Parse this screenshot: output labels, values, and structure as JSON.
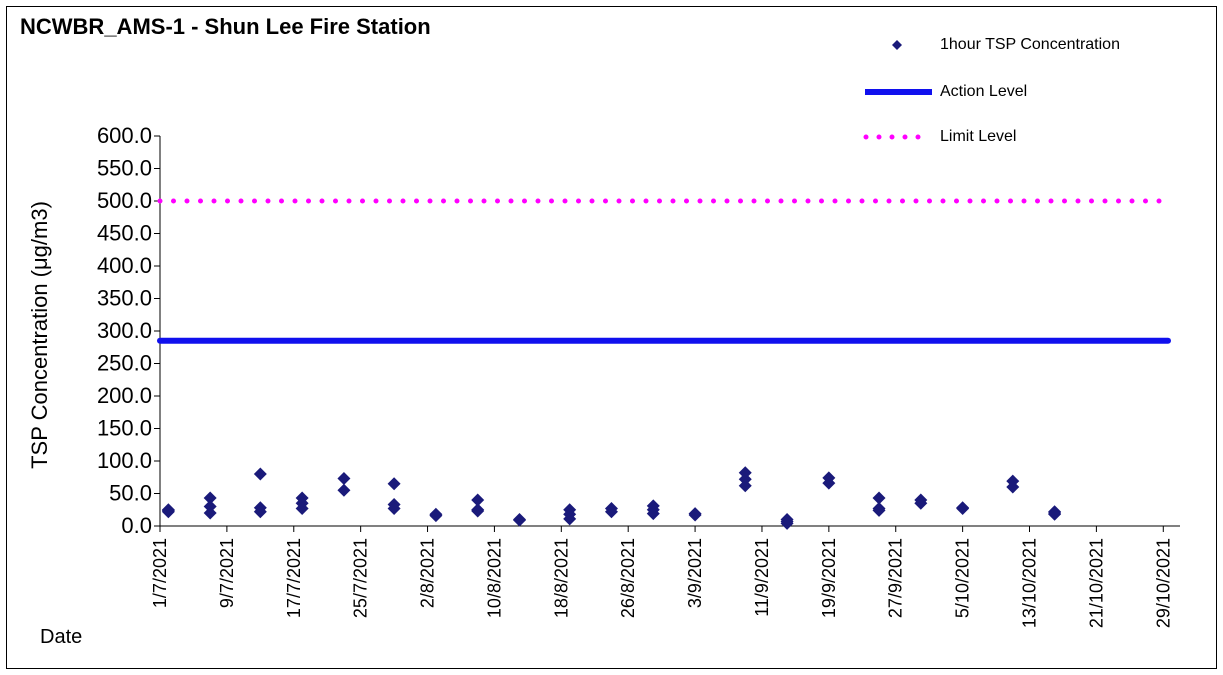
{
  "chart_data": {
    "type": "scatter",
    "title": "NCWBR_AMS-1 - Shun Lee Fire Station",
    "xlabel": "Date",
    "ylabel": "TSP Concentration (μg/m3)",
    "ylim": [
      0,
      600
    ],
    "y_ticks": [
      "0.0",
      "50.0",
      "100.0",
      "150.0",
      "200.0",
      "250.0",
      "300.0",
      "350.0",
      "400.0",
      "450.0",
      "500.0",
      "550.0",
      "600.0"
    ],
    "x_ticks": [
      "1/7/2021",
      "9/7/2021",
      "17/7/2021",
      "25/7/2021",
      "2/8/2021",
      "10/8/2021",
      "18/8/2021",
      "26/8/2021",
      "3/9/2021",
      "11/9/2021",
      "19/9/2021",
      "27/9/2021",
      "5/10/2021",
      "13/10/2021",
      "21/10/2021",
      "29/10/2021"
    ],
    "xlim": [
      "1/7/2021",
      "31/10/2021"
    ],
    "grid": false,
    "legend_position": "top-right",
    "series": [
      {
        "name": "1hour TSP Concentration",
        "kind": "scatter",
        "color": "#1a1a7a",
        "points": [
          {
            "x": "2/7/2021",
            "y": 25
          },
          {
            "x": "2/7/2021",
            "y": 22
          },
          {
            "x": "2/7/2021",
            "y": 24
          },
          {
            "x": "7/7/2021",
            "y": 43
          },
          {
            "x": "7/7/2021",
            "y": 30
          },
          {
            "x": "7/7/2021",
            "y": 20
          },
          {
            "x": "13/7/2021",
            "y": 80
          },
          {
            "x": "13/7/2021",
            "y": 28
          },
          {
            "x": "13/7/2021",
            "y": 22
          },
          {
            "x": "18/7/2021",
            "y": 43
          },
          {
            "x": "18/7/2021",
            "y": 35
          },
          {
            "x": "18/7/2021",
            "y": 27
          },
          {
            "x": "23/7/2021",
            "y": 73
          },
          {
            "x": "23/7/2021",
            "y": 55
          },
          {
            "x": "29/7/2021",
            "y": 65
          },
          {
            "x": "29/7/2021",
            "y": 33
          },
          {
            "x": "29/7/2021",
            "y": 27
          },
          {
            "x": "3/8/2021",
            "y": 18
          },
          {
            "x": "3/8/2021",
            "y": 16
          },
          {
            "x": "8/8/2021",
            "y": 40
          },
          {
            "x": "8/8/2021",
            "y": 25
          },
          {
            "x": "8/8/2021",
            "y": 23
          },
          {
            "x": "13/8/2021",
            "y": 10
          },
          {
            "x": "13/8/2021",
            "y": 9
          },
          {
            "x": "19/8/2021",
            "y": 25
          },
          {
            "x": "19/8/2021",
            "y": 18
          },
          {
            "x": "19/8/2021",
            "y": 11
          },
          {
            "x": "24/8/2021",
            "y": 27
          },
          {
            "x": "24/8/2021",
            "y": 22
          },
          {
            "x": "29/8/2021",
            "y": 31
          },
          {
            "x": "29/8/2021",
            "y": 25
          },
          {
            "x": "29/8/2021",
            "y": 19
          },
          {
            "x": "3/9/2021",
            "y": 19
          },
          {
            "x": "3/9/2021",
            "y": 17
          },
          {
            "x": "9/9/2021",
            "y": 82
          },
          {
            "x": "9/9/2021",
            "y": 72
          },
          {
            "x": "9/9/2021",
            "y": 62
          },
          {
            "x": "14/9/2021",
            "y": 10
          },
          {
            "x": "14/9/2021",
            "y": 7
          },
          {
            "x": "14/9/2021",
            "y": 4
          },
          {
            "x": "19/9/2021",
            "y": 74
          },
          {
            "x": "19/9/2021",
            "y": 66
          },
          {
            "x": "25/9/2021",
            "y": 43
          },
          {
            "x": "25/9/2021",
            "y": 27
          },
          {
            "x": "25/9/2021",
            "y": 24
          },
          {
            "x": "30/9/2021",
            "y": 40
          },
          {
            "x": "30/9/2021",
            "y": 35
          },
          {
            "x": "5/10/2021",
            "y": 28
          },
          {
            "x": "5/10/2021",
            "y": 27
          },
          {
            "x": "11/10/2021",
            "y": 69
          },
          {
            "x": "11/10/2021",
            "y": 60
          },
          {
            "x": "16/10/2021",
            "y": 22
          },
          {
            "x": "16/10/2021",
            "y": 20
          },
          {
            "x": "16/10/2021",
            "y": 18
          }
        ]
      },
      {
        "name": "Action Level",
        "kind": "line",
        "color": "#1010ee",
        "style": "solid",
        "y": 285
      },
      {
        "name": "Limit Level",
        "kind": "line",
        "color": "#ff00ff",
        "style": "dotted",
        "y": 500
      }
    ]
  }
}
